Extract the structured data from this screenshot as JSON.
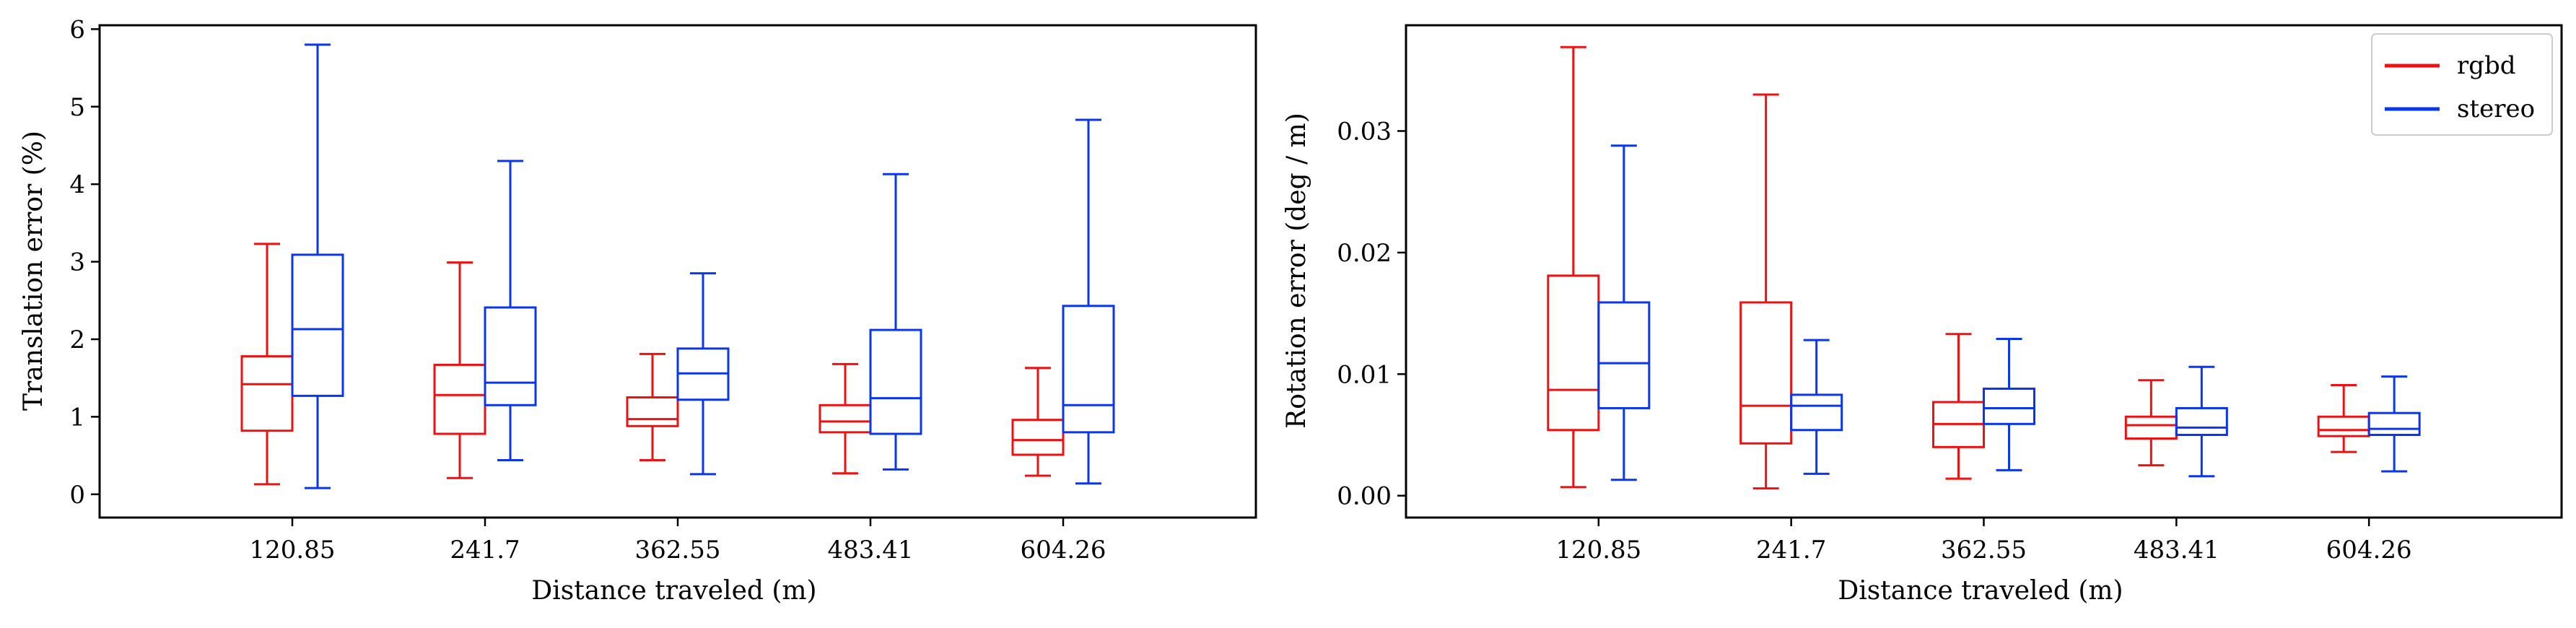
{
  "colors": {
    "rgbd": "#ee1111",
    "stereo": "#0b36f0",
    "axis": "#000000"
  },
  "chart_data": [
    {
      "type": "boxplot",
      "xlabel": "Distance traveled (m)",
      "ylabel": "Translation error (%)",
      "categories": [
        "120.85",
        "241.7",
        "362.55",
        "483.41",
        "604.26"
      ],
      "ylim": [
        -0.3,
        6.05
      ],
      "yticks": [
        0,
        1,
        2,
        3,
        4,
        5,
        6
      ],
      "ytick_labels": [
        "0",
        "1",
        "2",
        "3",
        "4",
        "5",
        "6"
      ],
      "series": [
        {
          "name": "rgbd",
          "color": "#ee1111",
          "boxes": [
            {
              "whislo": 0.13,
              "q1": 0.82,
              "med": 1.42,
              "q3": 1.78,
              "whishi": 3.23
            },
            {
              "whislo": 0.21,
              "q1": 0.78,
              "med": 1.28,
              "q3": 1.67,
              "whishi": 2.99
            },
            {
              "whislo": 0.44,
              "q1": 0.88,
              "med": 0.97,
              "q3": 1.25,
              "whishi": 1.81
            },
            {
              "whislo": 0.27,
              "q1": 0.8,
              "med": 0.94,
              "q3": 1.15,
              "whishi": 1.68
            },
            {
              "whislo": 0.24,
              "q1": 0.51,
              "med": 0.7,
              "q3": 0.96,
              "whishi": 1.63
            }
          ]
        },
        {
          "name": "stereo",
          "color": "#0b36f0",
          "boxes": [
            {
              "whislo": 0.08,
              "q1": 1.27,
              "med": 2.13,
              "q3": 3.09,
              "whishi": 5.8
            },
            {
              "whislo": 0.44,
              "q1": 1.15,
              "med": 1.44,
              "q3": 2.41,
              "whishi": 4.3
            },
            {
              "whislo": 0.26,
              "q1": 1.22,
              "med": 1.56,
              "q3": 1.88,
              "whishi": 2.85
            },
            {
              "whislo": 0.32,
              "q1": 0.78,
              "med": 1.24,
              "q3": 2.12,
              "whishi": 4.13
            },
            {
              "whislo": 0.14,
              "q1": 0.8,
              "med": 1.15,
              "q3": 2.43,
              "whishi": 4.83
            }
          ]
        }
      ]
    },
    {
      "type": "boxplot",
      "xlabel": "Distance traveled (m)",
      "ylabel": "Rotation error (deg / m)",
      "categories": [
        "120.85",
        "241.7",
        "362.55",
        "483.41",
        "604.26"
      ],
      "ylim": [
        -0.0018,
        0.0387
      ],
      "yticks": [
        0.0,
        0.01,
        0.02,
        0.03
      ],
      "ytick_labels": [
        "0.00",
        "0.01",
        "0.02",
        "0.03"
      ],
      "legend": {
        "position": "top-right",
        "entries": [
          "rgbd",
          "stereo"
        ]
      },
      "series": [
        {
          "name": "rgbd",
          "color": "#ee1111",
          "boxes": [
            {
              "whislo": 0.0007,
              "q1": 0.0054,
              "med": 0.0087,
              "q3": 0.0181,
              "whishi": 0.0369
            },
            {
              "whislo": 0.0006,
              "q1": 0.0043,
              "med": 0.0074,
              "q3": 0.0159,
              "whishi": 0.033
            },
            {
              "whislo": 0.0014,
              "q1": 0.004,
              "med": 0.0059,
              "q3": 0.0077,
              "whishi": 0.0133
            },
            {
              "whislo": 0.0025,
              "q1": 0.0047,
              "med": 0.0058,
              "q3": 0.0065,
              "whishi": 0.0095
            },
            {
              "whislo": 0.0036,
              "q1": 0.0049,
              "med": 0.0054,
              "q3": 0.0065,
              "whishi": 0.0091
            }
          ]
        },
        {
          "name": "stereo",
          "color": "#0b36f0",
          "boxes": [
            {
              "whislo": 0.0013,
              "q1": 0.0072,
              "med": 0.0109,
              "q3": 0.0159,
              "whishi": 0.0288
            },
            {
              "whislo": 0.0018,
              "q1": 0.0054,
              "med": 0.0074,
              "q3": 0.0083,
              "whishi": 0.0128
            },
            {
              "whislo": 0.0021,
              "q1": 0.0059,
              "med": 0.0072,
              "q3": 0.0088,
              "whishi": 0.0129
            },
            {
              "whislo": 0.0016,
              "q1": 0.005,
              "med": 0.0056,
              "q3": 0.0072,
              "whishi": 0.0106
            },
            {
              "whislo": 0.002,
              "q1": 0.005,
              "med": 0.0055,
              "q3": 0.0068,
              "whishi": 0.0098
            }
          ]
        }
      ]
    }
  ]
}
